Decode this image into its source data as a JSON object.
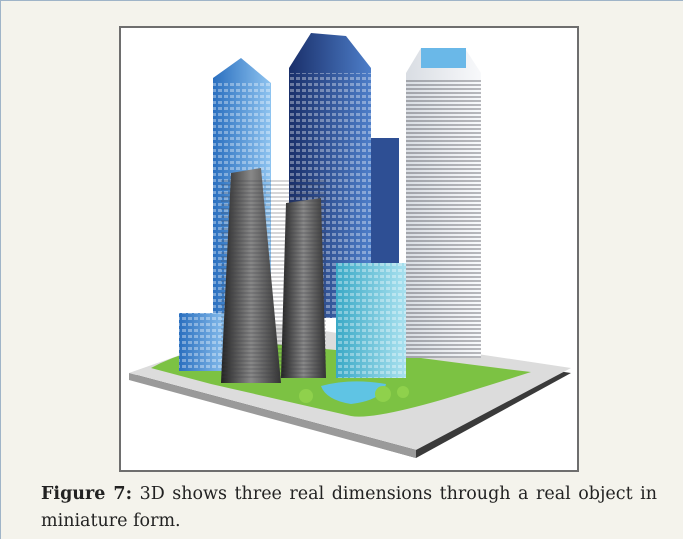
{
  "figure": {
    "label": "Figure 7:",
    "caption_text": " 3D shows three real dimensions through a real object in miniature form.",
    "image_icon": "city-skyline-model-illustration"
  }
}
